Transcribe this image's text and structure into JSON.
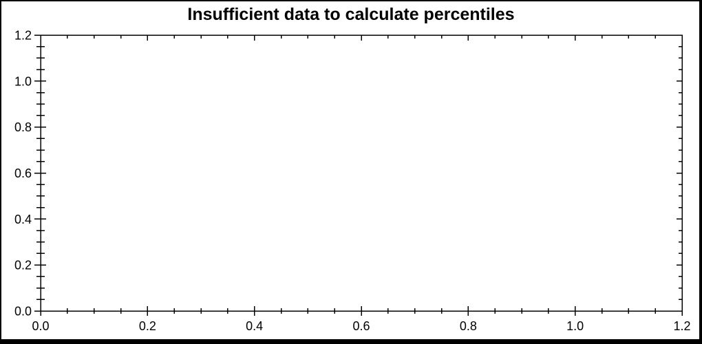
{
  "title": "Insufficient data to calculate percentiles",
  "window": {
    "background": "#ffffff",
    "border_color": "#000000"
  },
  "chart_data": {
    "type": "scatter",
    "title": "Insufficient data to calculate percentiles",
    "series": [],
    "xlabel": "",
    "ylabel": "",
    "xlim": [
      0.0,
      1.2
    ],
    "ylim": [
      0.0,
      1.2
    ],
    "x_major_ticks": [
      0.0,
      0.2,
      0.4,
      0.6,
      0.8,
      1.0,
      1.2
    ],
    "y_major_ticks": [
      0.0,
      0.2,
      0.4,
      0.6,
      0.8,
      1.0,
      1.2
    ],
    "x_tick_labels": [
      "0.0",
      "0.2",
      "0.4",
      "0.6",
      "0.8",
      "1.0",
      "1.2"
    ],
    "y_tick_labels": [
      "0.0",
      "0.2",
      "0.4",
      "0.6",
      "0.8",
      "1.0",
      "1.2"
    ],
    "minor_tick_step": 0.05,
    "grid": false,
    "legend": null,
    "frame": "box",
    "tick_style": "majors and minors cross bottom/left axes; inward-only on top/right",
    "axis_color": "#000000",
    "text_color": "#000000",
    "plot_background": "#ffffff"
  }
}
